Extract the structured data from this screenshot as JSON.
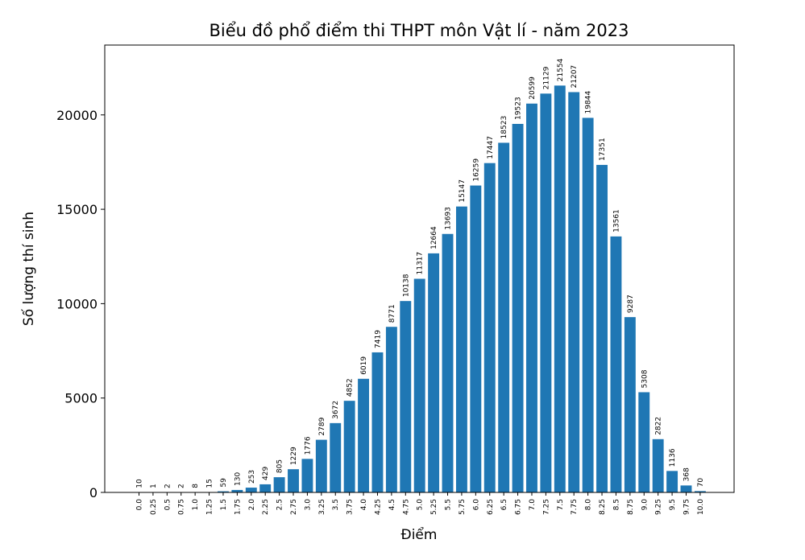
{
  "chart_data": {
    "type": "bar",
    "title": "Biểu đồ phổ điểm thi THPT môn Vật lí - năm 2023",
    "xlabel": "Điểm",
    "ylabel": "Số lượng thí sinh",
    "categories": [
      "0.0",
      "0.25",
      "0.5",
      "0.75",
      "1.0",
      "1.25",
      "1.5",
      "1.75",
      "2.0",
      "2.25",
      "2.5",
      "2.75",
      "3.0",
      "3.25",
      "3.5",
      "3.75",
      "4.0",
      "4.25",
      "4.5",
      "4.75",
      "5.0",
      "5.25",
      "5.5",
      "5.75",
      "6.0",
      "6.25",
      "6.5",
      "6.75",
      "7.0",
      "7.25",
      "7.5",
      "7.75",
      "8.0",
      "8.25",
      "8.5",
      "8.75",
      "9.0",
      "9.25",
      "9.5",
      "9.75",
      "10.0"
    ],
    "values": [
      10,
      1,
      2,
      2,
      8,
      15,
      59,
      130,
      253,
      429,
      805,
      1229,
      1776,
      2789,
      3672,
      4852,
      6019,
      7419,
      8771,
      10138,
      11317,
      12664,
      13693,
      15147,
      16259,
      17447,
      18523,
      19523,
      20599,
      21129,
      21554,
      21207,
      19844,
      17351,
      13561,
      9287,
      5308,
      2822,
      1136,
      368,
      70
    ],
    "data_labels": [
      "10",
      "1",
      "2",
      "2",
      "8",
      "15",
      "59",
      "130",
      "253",
      "429",
      "805",
      "1229",
      "1776",
      "2789",
      "3672",
      "4852",
      "6019",
      "7419",
      "8771",
      "10138",
      "11317",
      "12664",
      "13693",
      "15147",
      "16259",
      "17447",
      "18523",
      "19523",
      "20599",
      "21129",
      "21554",
      "21207",
      "19844",
      "17351",
      "13561",
      "9287",
      "5308",
      "2822",
      "1136",
      "368",
      "70"
    ],
    "yticks": [
      "0",
      "5000",
      "10000",
      "15000",
      "20000"
    ],
    "ytick_values": [
      0,
      5000,
      10000,
      15000,
      20000
    ],
    "ylim": [
      0,
      23700
    ],
    "grid": false,
    "bar_color": "#1f77b4"
  }
}
